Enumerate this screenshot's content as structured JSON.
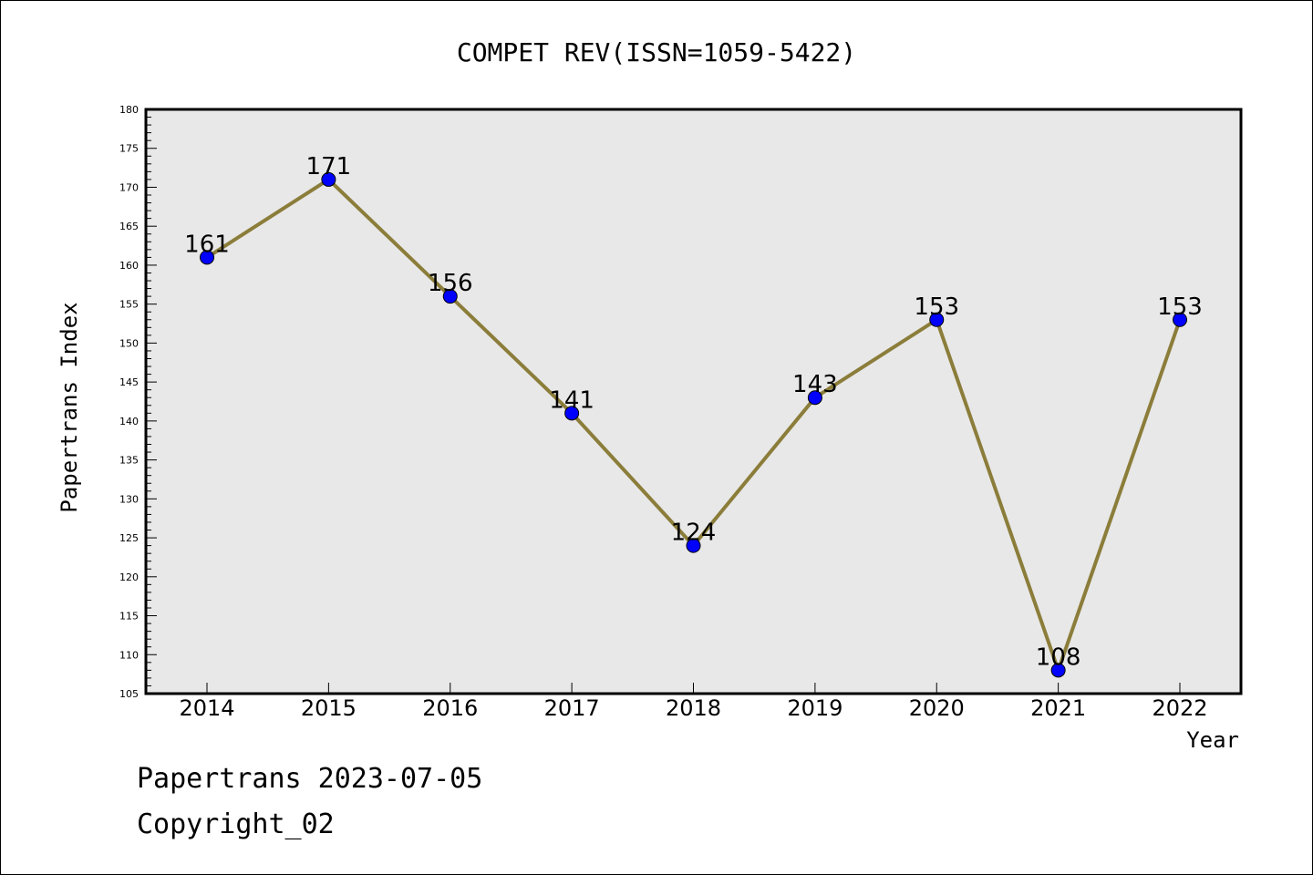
{
  "chart_data": {
    "type": "line",
    "title": "COMPET REV(ISSN=1059-5422)",
    "xlabel": "Year",
    "ylabel": "Papertrans Index",
    "categories": [
      "2014",
      "2015",
      "2016",
      "2017",
      "2018",
      "2019",
      "2020",
      "2021",
      "2022"
    ],
    "series": [
      {
        "values": [
          161,
          171,
          156,
          141,
          124,
          143,
          153,
          108,
          153
        ]
      }
    ],
    "data_labels": [
      "161",
      "171",
      "156",
      "141",
      "124",
      "143",
      "153",
      "108",
      "153"
    ],
    "ylim": [
      105,
      180
    ],
    "y_ticks": [
      "105",
      "110",
      "115",
      "120",
      "125",
      "130",
      "135",
      "140",
      "145",
      "150",
      "155",
      "160",
      "165",
      "170",
      "175",
      "180"
    ],
    "grid": false,
    "line_color": "#8b7d3a",
    "marker_color": "#0000ff",
    "plot_background": "#e8e8e8"
  },
  "footer": {
    "line1": "Papertrans 2023-07-05",
    "line2": "Copyright_02"
  }
}
